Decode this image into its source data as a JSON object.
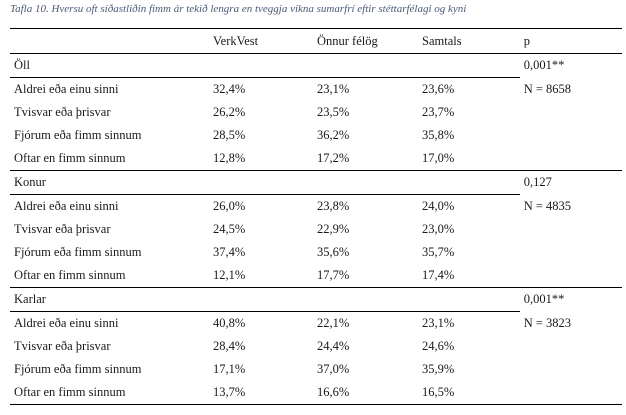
{
  "caption": "Tafla 10. Hversu oft síðastliðin fimm ár tekið lengra en tveggja vikna sumarfrí eftir stéttarfélagi og kyni",
  "columns": [
    "",
    "VerkVest",
    "Önnur félög",
    "Samtals",
    "p"
  ],
  "groups": [
    {
      "name": "Öll",
      "p": "0,001**",
      "n": "N = 8658",
      "rows": [
        {
          "label": "Aldrei eða einu sinni",
          "values": [
            "32,4%",
            "23,1%",
            "23,6%"
          ]
        },
        {
          "label": "Tvisvar eða þrisvar",
          "values": [
            "26,2%",
            "23,5%",
            "23,7%"
          ]
        },
        {
          "label": "Fjórum eða fimm sinnum",
          "values": [
            "28,5%",
            "36,2%",
            "35,8%"
          ]
        },
        {
          "label": "Oftar en fimm sinnum",
          "values": [
            "12,8%",
            "17,2%",
            "17,0%"
          ]
        }
      ]
    },
    {
      "name": "Konur",
      "p": "0,127",
      "n": "N = 4835",
      "rows": [
        {
          "label": "Aldrei eða einu sinni",
          "values": [
            "26,0%",
            "23,8%",
            "24,0%"
          ]
        },
        {
          "label": "Tvisvar eða þrisvar",
          "values": [
            "24,5%",
            "22,9%",
            "23,0%"
          ]
        },
        {
          "label": "Fjórum eða fimm sinnum",
          "values": [
            "37,4%",
            "35,6%",
            "35,7%"
          ]
        },
        {
          "label": "Oftar en fimm sinnum",
          "values": [
            "12,1%",
            "17,7%",
            "17,4%"
          ]
        }
      ]
    },
    {
      "name": "Karlar",
      "p": "0,001**",
      "n": "N = 3823",
      "rows": [
        {
          "label": "Aldrei eða einu sinni",
          "values": [
            "40,8%",
            "22,1%",
            "23,1%"
          ]
        },
        {
          "label": "Tvisvar eða þrisvar",
          "values": [
            "28,4%",
            "24,4%",
            "24,6%"
          ]
        },
        {
          "label": "Fjórum eða fimm sinnum",
          "values": [
            "17,1%",
            "37,0%",
            "35,9%"
          ]
        },
        {
          "label": "Oftar en fimm sinnum",
          "values": [
            "13,7%",
            "16,6%",
            "16,5%"
          ]
        }
      ]
    }
  ]
}
